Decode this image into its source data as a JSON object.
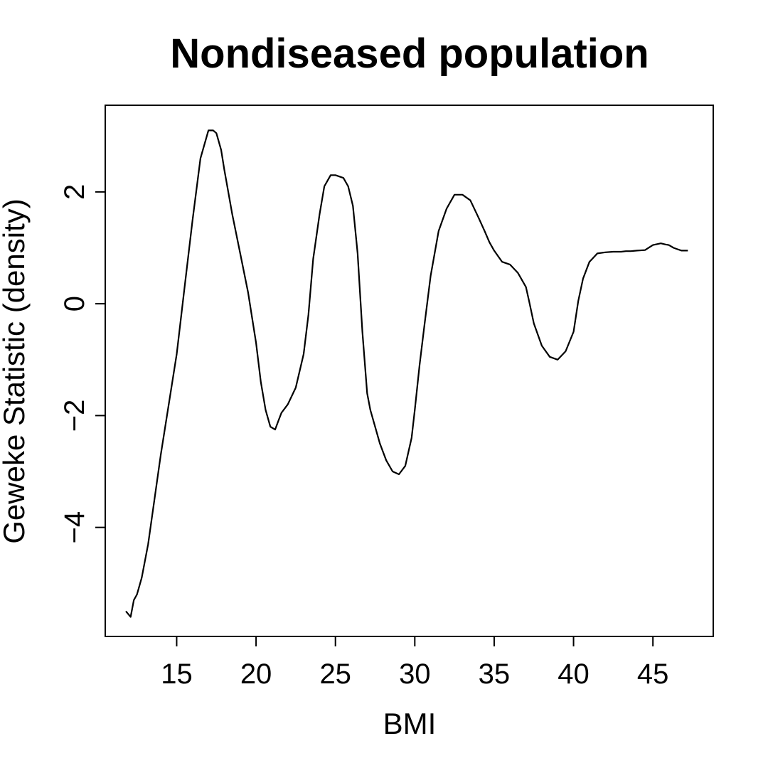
{
  "chart_data": {
    "type": "line",
    "title": "Nondiseased population",
    "xlabel": "BMI",
    "ylabel": "Geweke Statistic (density)",
    "xlim": [
      10.5,
      48.8
    ],
    "ylim": [
      -5.95,
      3.55
    ],
    "x_ticks": [
      15,
      20,
      25,
      30,
      35,
      40,
      45
    ],
    "y_ticks": [
      -4,
      -2,
      0,
      2
    ],
    "grid": false,
    "legend": "none",
    "line_color": "#000000",
    "series": [
      {
        "x": [
          11.8,
          12.1,
          12.3,
          12.5,
          12.8,
          13.2,
          13.6,
          14.0,
          14.5,
          15.0,
          15.5,
          16.0,
          16.5,
          17.0,
          17.3,
          17.5,
          17.8,
          18.0,
          18.5,
          19.0,
          19.5,
          20.0,
          20.3,
          20.6,
          20.9,
          21.2,
          21.4,
          21.6,
          22.0,
          22.5,
          23.0,
          23.3,
          23.6,
          24.0,
          24.3,
          24.7,
          25.0,
          25.5,
          25.8,
          26.1,
          26.4,
          26.7,
          27.0,
          27.2,
          27.5,
          27.8,
          28.2,
          28.6,
          29.0,
          29.4,
          29.8,
          30.0,
          30.3,
          30.6,
          31.0,
          31.5,
          32.0,
          32.5,
          33.0,
          33.5,
          34.0,
          34.4,
          34.7,
          35.0,
          35.5,
          36.0,
          36.5,
          37.0,
          37.2,
          37.5,
          38.0,
          38.5,
          39.0,
          39.5,
          40.0,
          40.3,
          40.6,
          41.0,
          41.5,
          42.0,
          42.5,
          43.0,
          43.3,
          43.6,
          44.0,
          44.5,
          45.0,
          45.5,
          45.8,
          46.0,
          46.3,
          46.5,
          46.8,
          47.2
        ],
        "y": [
          -5.5,
          -5.6,
          -5.3,
          -5.2,
          -4.9,
          -4.3,
          -3.5,
          -2.7,
          -1.8,
          -0.9,
          0.3,
          1.5,
          2.6,
          3.1,
          3.1,
          3.05,
          2.75,
          2.4,
          1.6,
          0.9,
          0.2,
          -0.7,
          -1.4,
          -1.9,
          -2.2,
          -2.25,
          -2.1,
          -1.95,
          -1.8,
          -1.5,
          -0.9,
          -0.2,
          0.8,
          1.6,
          2.1,
          2.3,
          2.3,
          2.25,
          2.1,
          1.75,
          0.9,
          -0.5,
          -1.6,
          -1.9,
          -2.2,
          -2.5,
          -2.8,
          -3.0,
          -3.05,
          -2.9,
          -2.4,
          -1.9,
          -1.1,
          -0.4,
          0.5,
          1.3,
          1.7,
          1.95,
          1.95,
          1.85,
          1.55,
          1.3,
          1.1,
          0.95,
          0.75,
          0.7,
          0.55,
          0.3,
          0.05,
          -0.35,
          -0.75,
          -0.95,
          -1.0,
          -0.85,
          -0.5,
          0.05,
          0.45,
          0.75,
          0.9,
          0.92,
          0.93,
          0.93,
          0.94,
          0.94,
          0.95,
          0.96,
          1.05,
          1.08,
          1.06,
          1.05,
          1.0,
          0.98,
          0.95,
          0.95
        ]
      }
    ]
  }
}
